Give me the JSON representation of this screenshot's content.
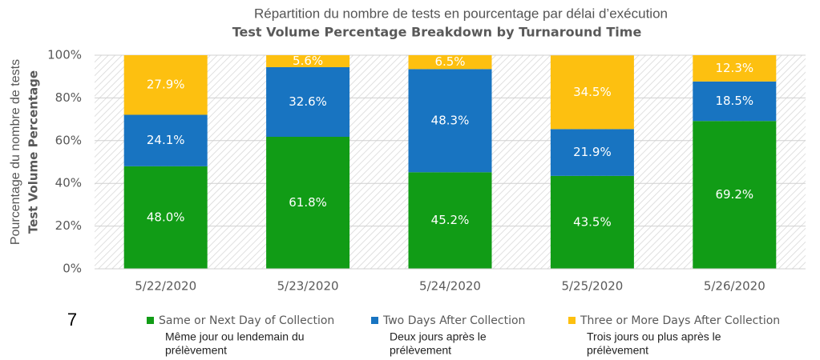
{
  "page_number": "7",
  "chart_data": {
    "type": "stacked_bar",
    "title": "Répartition du nombre de tests en pourcentage par délai d’exécution",
    "subtitle": "Test Volume Percentage Breakdown by Turnaround Time",
    "y_label": "Pourcentage du nombre de tests",
    "y_label_en": "Test Volume Percentage",
    "categories": [
      "5/22/2020",
      "5/23/2020",
      "5/24/2020",
      "5/25/2020",
      "5/26/2020"
    ],
    "series": [
      {
        "name": "Same or Next Day of Collection",
        "label_fr": [
          "Même jour ou lendemain du",
          "prélèvement"
        ],
        "color": "#119c16",
        "values": [
          48.0,
          61.8,
          45.2,
          43.5,
          69.2
        ],
        "value_labels": [
          "48.0%",
          "61.8%",
          "45.2%",
          "43.5%",
          "69.2%"
        ]
      },
      {
        "name": "Two Days After Collection",
        "label_fr": [
          "Deux jours après le",
          "prélèvement"
        ],
        "color": "#1874c1",
        "values": [
          24.1,
          32.6,
          48.3,
          21.9,
          18.5
        ],
        "value_labels": [
          "24.1%",
          "32.6%",
          "48.3%",
          "21.9%",
          "18.5%"
        ]
      },
      {
        "name": "Three or More Days After Collection",
        "label_fr": [
          "Trois jours ou plus après le",
          "prélèvement"
        ],
        "color": "#fdc010",
        "values": [
          27.9,
          5.6,
          6.5,
          34.5,
          12.3
        ],
        "value_labels": [
          "27.9%",
          "5.6%",
          "6.5%",
          "34.5%",
          "12.3%"
        ]
      }
    ],
    "ylim": [
      0,
      100
    ],
    "yticks": [
      {
        "value": 0,
        "label": "0%"
      },
      {
        "value": 20,
        "label": "20%"
      },
      {
        "value": 40,
        "label": "40%"
      },
      {
        "value": 60,
        "label": "60%"
      },
      {
        "value": 80,
        "label": "80%"
      },
      {
        "value": 100,
        "label": "100%"
      }
    ],
    "grid": true,
    "legend": "bottom"
  }
}
